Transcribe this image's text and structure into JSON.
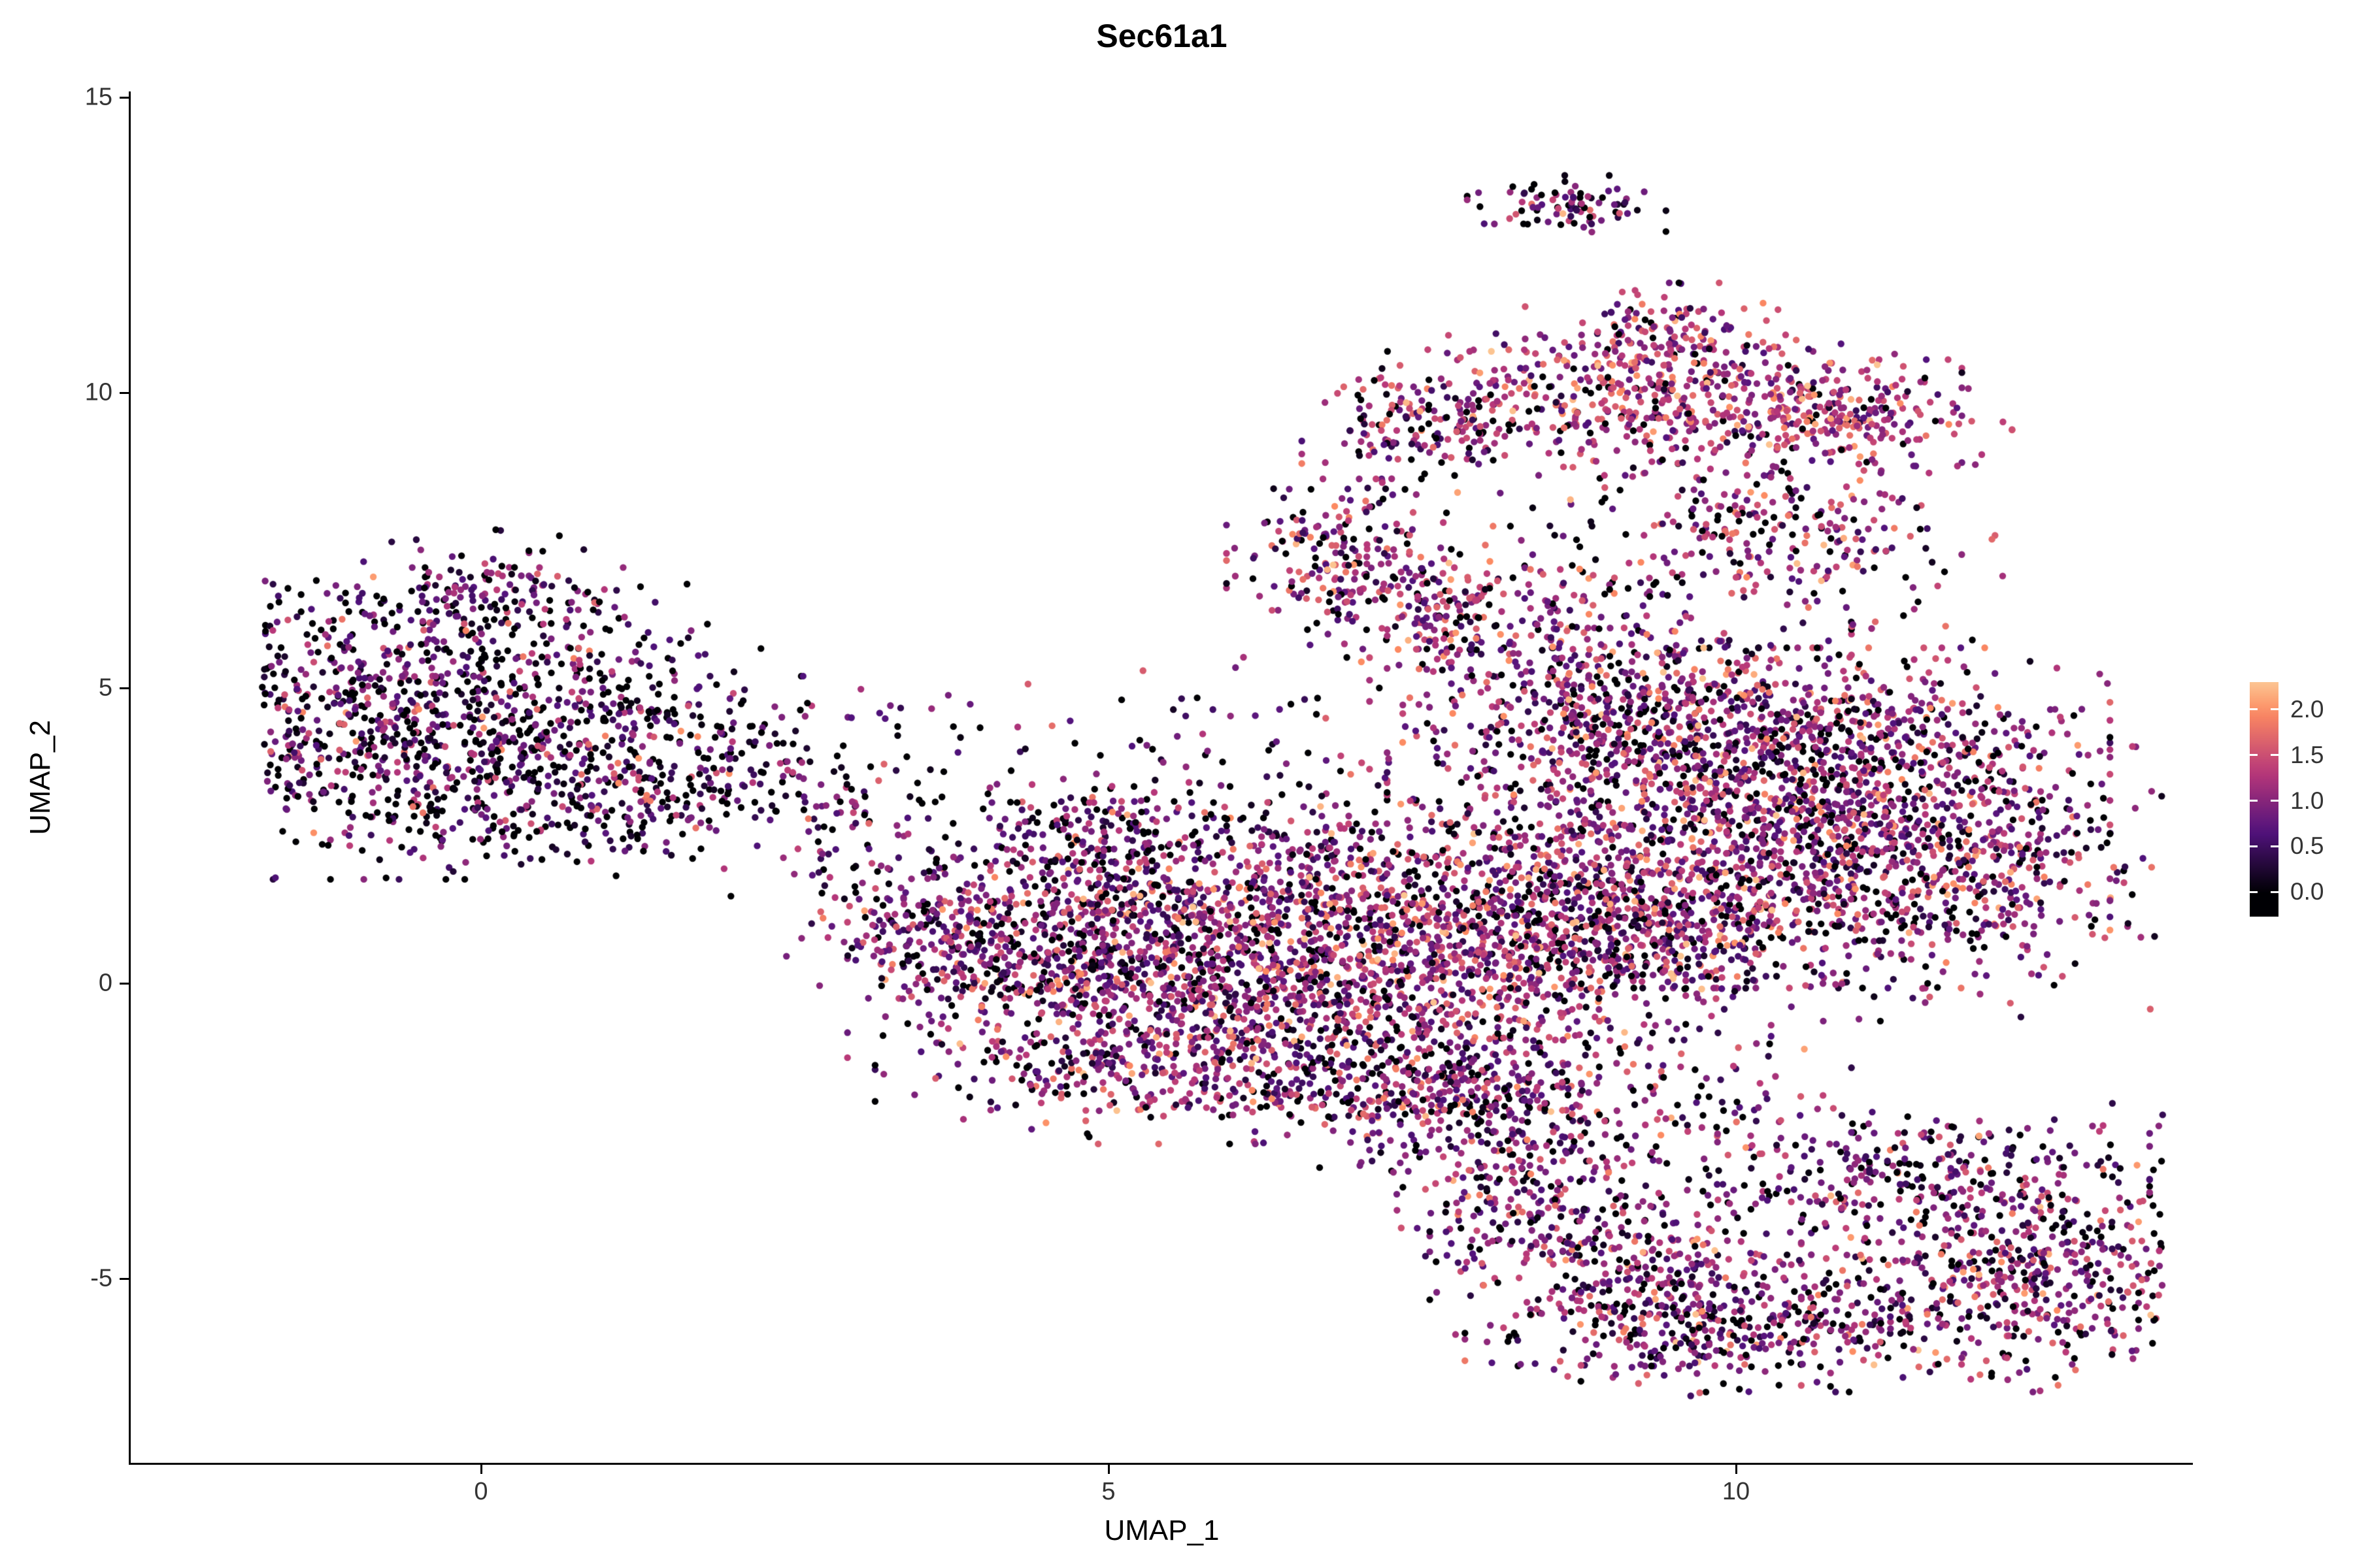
{
  "chart_data": {
    "type": "scatter",
    "title": "Sec61a1",
    "xlabel": "UMAP_1",
    "ylabel": "UMAP_2",
    "x_ticks": [
      0,
      5,
      10
    ],
    "y_ticks": [
      -5,
      0,
      5,
      10,
      15
    ],
    "xlim": [
      -2.8,
      13.65
    ],
    "ylim": [
      -8.1,
      15.1
    ],
    "grid": false,
    "legend_position": "right",
    "legend": {
      "tick_labels": [
        "2.0",
        "1.5",
        "1.0",
        "0.5",
        "0.0"
      ],
      "tick_values": [
        2.0,
        1.5,
        1.0,
        0.5,
        0.0
      ],
      "bar_value_top": 2.3,
      "bar_value_bottom": -0.27
    },
    "colormap": {
      "name": "magma",
      "stops": [
        "#000004",
        "#51127c",
        "#b73779",
        "#fc8961",
        "#fcfdbf"
      ],
      "top_fraction": 0.88
    },
    "expression_max": 2.3,
    "point_seed": 42,
    "point_radius": 5.2,
    "clusters": [
      {
        "name": "left-core",
        "x": -0.5,
        "y": 4.4,
        "sx": 0.85,
        "sy": 1.1,
        "n": 800,
        "m": 0.75,
        "s": 0.55,
        "z": 0.32
      },
      {
        "name": "left-arm-top",
        "x": 0.0,
        "y": 6.6,
        "sx": 0.45,
        "sy": 0.45,
        "n": 130,
        "m": 0.7,
        "s": 0.5,
        "z": 0.3
      },
      {
        "name": "left-tail",
        "x": 1.4,
        "y": 4.0,
        "sx": 0.8,
        "sy": 0.5,
        "n": 260,
        "m": 0.7,
        "s": 0.55,
        "z": 0.35
      },
      {
        "name": "left-tail-upper",
        "x": 1.0,
        "y": 5.4,
        "sx": 0.6,
        "sy": 0.7,
        "n": 80,
        "m": 0.7,
        "s": 0.5,
        "z": 0.35
      },
      {
        "name": "left-tail-lower",
        "x": 0.9,
        "y": 2.9,
        "sx": 0.9,
        "sy": 0.45,
        "n": 200,
        "m": 0.7,
        "s": 0.55,
        "z": 0.35
      },
      {
        "name": "bridge-sparse",
        "x": 3.2,
        "y": 2.6,
        "sx": 0.6,
        "sy": 1.1,
        "n": 140,
        "m": 0.8,
        "s": 0.5,
        "z": 0.3
      },
      {
        "name": "bridge-clump",
        "x": 3.6,
        "y": 0.8,
        "sx": 0.4,
        "sy": 0.6,
        "n": 160,
        "m": 0.9,
        "s": 0.5,
        "z": 0.2
      },
      {
        "name": "central-left",
        "x": 4.6,
        "y": 0.9,
        "sx": 0.7,
        "sy": 0.9,
        "n": 450,
        "m": 1.0,
        "s": 0.55,
        "z": 0.15
      },
      {
        "name": "central-mid",
        "x": 5.8,
        "y": 0.4,
        "sx": 1.0,
        "sy": 1.0,
        "n": 800,
        "m": 1.0,
        "s": 0.55,
        "z": 0.15
      },
      {
        "name": "central-right",
        "x": 7.2,
        "y": 0.3,
        "sx": 1.0,
        "sy": 1.0,
        "n": 800,
        "m": 1.05,
        "s": 0.55,
        "z": 0.15
      },
      {
        "name": "central-bottom",
        "x": 5.3,
        "y": -1.4,
        "sx": 0.9,
        "sy": 0.55,
        "n": 300,
        "m": 1.0,
        "s": 0.55,
        "z": 0.15
      },
      {
        "name": "central-top",
        "x": 6.6,
        "y": 2.0,
        "sx": 0.8,
        "sy": 0.6,
        "n": 250,
        "m": 1.0,
        "s": 0.55,
        "z": 0.15
      },
      {
        "name": "central-topleft",
        "x": 4.9,
        "y": 2.4,
        "sx": 0.5,
        "sy": 0.5,
        "n": 150,
        "m": 0.95,
        "s": 0.5,
        "z": 0.2
      },
      {
        "name": "central-bottomright",
        "x": 7.0,
        "y": -2.0,
        "sx": 0.6,
        "sy": 0.5,
        "n": 150,
        "m": 1.0,
        "s": 0.55,
        "z": 0.18
      },
      {
        "name": "central-above-sparse",
        "x": 5.9,
        "y": 3.6,
        "sx": 1.0,
        "sy": 0.8,
        "n": 90,
        "m": 0.9,
        "s": 0.5,
        "z": 0.3
      },
      {
        "name": "right-core",
        "x": 10.1,
        "y": 2.8,
        "sx": 1.2,
        "sy": 1.2,
        "n": 1500,
        "m": 1.05,
        "s": 0.55,
        "z": 0.15
      },
      {
        "name": "right-top",
        "x": 9.0,
        "y": 4.8,
        "sx": 0.8,
        "sy": 0.7,
        "n": 450,
        "m": 1.05,
        "s": 0.55,
        "z": 0.15
      },
      {
        "name": "right-east",
        "x": 11.7,
        "y": 2.0,
        "sx": 0.8,
        "sy": 1.1,
        "n": 500,
        "m": 1.0,
        "s": 0.55,
        "z": 0.18
      },
      {
        "name": "right-west",
        "x": 8.6,
        "y": 1.2,
        "sx": 0.7,
        "sy": 0.9,
        "n": 400,
        "m": 1.05,
        "s": 0.55,
        "z": 0.15
      },
      {
        "name": "right-topeast",
        "x": 10.8,
        "y": 4.4,
        "sx": 0.9,
        "sy": 0.6,
        "n": 300,
        "m": 1.05,
        "s": 0.55,
        "z": 0.15
      },
      {
        "name": "right-south",
        "x": 9.4,
        "y": 0.6,
        "sx": 0.8,
        "sy": 0.6,
        "n": 300,
        "m": 1.05,
        "s": 0.55,
        "z": 0.15
      },
      {
        "name": "arm-upper",
        "x": 6.9,
        "y": 7.1,
        "sx": 0.4,
        "sy": 0.6,
        "n": 220,
        "m": 1.1,
        "s": 0.55,
        "z": 0.15
      },
      {
        "name": "arm-lower",
        "x": 7.7,
        "y": 6.3,
        "sx": 0.35,
        "sy": 0.5,
        "n": 120,
        "m": 1.1,
        "s": 0.5,
        "z": 0.15
      },
      {
        "name": "bridge-top",
        "x": 10.3,
        "y": 7.6,
        "sx": 0.8,
        "sy": 0.8,
        "n": 300,
        "m": 1.1,
        "s": 0.55,
        "z": 0.18
      },
      {
        "name": "bridge-top-left",
        "x": 8.3,
        "y": 6.3,
        "sx": 0.5,
        "sy": 0.6,
        "n": 100,
        "m": 1.0,
        "s": 0.5,
        "z": 0.25
      },
      {
        "name": "band-main",
        "x": 9.4,
        "y": 9.8,
        "sx": 1.0,
        "sy": 0.5,
        "n": 500,
        "m": 1.25,
        "s": 0.5,
        "z": 0.1
      },
      {
        "name": "band-east",
        "x": 11.0,
        "y": 9.6,
        "sx": 0.5,
        "sy": 0.4,
        "n": 160,
        "m": 1.25,
        "s": 0.5,
        "z": 0.1
      },
      {
        "name": "band-upper",
        "x": 9.4,
        "y": 10.9,
        "sx": 0.45,
        "sy": 0.4,
        "n": 160,
        "m": 1.2,
        "s": 0.5,
        "z": 0.12
      },
      {
        "name": "band-west",
        "x": 7.5,
        "y": 9.5,
        "sx": 0.4,
        "sy": 0.5,
        "n": 150,
        "m": 1.15,
        "s": 0.5,
        "z": 0.15
      },
      {
        "name": "top-island",
        "x": 8.65,
        "y": 13.15,
        "sx": 0.33,
        "sy": 0.22,
        "n": 85,
        "m": 0.9,
        "s": 0.55,
        "z": 0.25
      },
      {
        "name": "hook-neck",
        "x": 8.3,
        "y": -3.2,
        "sx": 0.5,
        "sy": 0.7,
        "n": 250,
        "m": 0.95,
        "s": 0.55,
        "z": 0.2
      },
      {
        "name": "hook-arm",
        "x": 9.0,
        "y": -4.8,
        "sx": 0.6,
        "sy": 0.7,
        "n": 280,
        "m": 0.95,
        "s": 0.55,
        "z": 0.2
      },
      {
        "name": "hook-bottom",
        "x": 10.0,
        "y": -5.8,
        "sx": 0.9,
        "sy": 0.5,
        "n": 380,
        "m": 0.95,
        "s": 0.55,
        "z": 0.2
      },
      {
        "name": "hook-east",
        "x": 12.2,
        "y": -5.0,
        "sx": 0.7,
        "sy": 0.8,
        "n": 500,
        "m": 0.95,
        "s": 0.55,
        "z": 0.2
      },
      {
        "name": "hook-upper",
        "x": 11.5,
        "y": -3.2,
        "sx": 0.9,
        "sy": 0.5,
        "n": 280,
        "m": 0.9,
        "s": 0.55,
        "z": 0.22
      },
      {
        "name": "hook-interior-sparse",
        "x": 10.3,
        "y": -4.2,
        "sx": 0.7,
        "sy": 0.5,
        "n": 60,
        "m": 0.9,
        "s": 0.5,
        "z": 0.25
      },
      {
        "name": "hook-join",
        "x": 7.7,
        "y": -1.7,
        "sx": 0.6,
        "sy": 0.5,
        "n": 200,
        "m": 1.0,
        "s": 0.55,
        "z": 0.18
      },
      {
        "name": "hook-join-sparse",
        "x": 9.0,
        "y": -1.9,
        "sx": 0.8,
        "sy": 0.6,
        "n": 150,
        "m": 0.95,
        "s": 0.5,
        "z": 0.25
      }
    ]
  },
  "colors": {
    "background": "#ffffff",
    "axis": "#000000",
    "tick_label": "#333333",
    "title": "#000000"
  }
}
